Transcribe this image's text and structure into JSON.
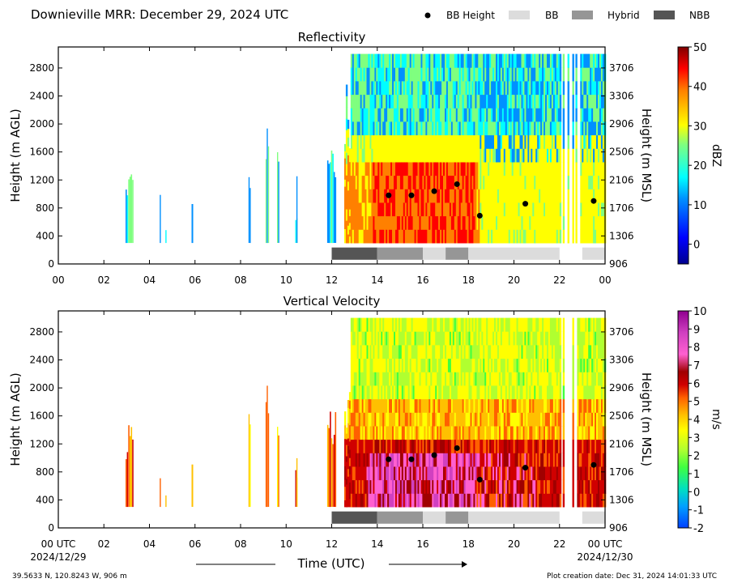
{
  "header": {
    "title": "Downieville MRR:  December 29, 2024 UTC",
    "legend": [
      {
        "label": "BB Height",
        "kind": "dot",
        "color": "#000000"
      },
      {
        "label": "BB",
        "kind": "swatch",
        "color": "#dcdcdc"
      },
      {
        "label": "Hybrid",
        "kind": "swatch",
        "color": "#969696"
      },
      {
        "label": "NBB",
        "kind": "swatch",
        "color": "#555555"
      }
    ]
  },
  "footer": {
    "location": "39.5633 N, 120.8243 W, 906 m",
    "creation": "Plot creation date: Dec 31, 2024 14:01:33 UTC",
    "xlabel": "Time (UTC)",
    "start_date": "2024/12/29",
    "end_date": "2024/12/30"
  },
  "chart_data": [
    {
      "type": "heatmap",
      "title": "Reflectivity",
      "ylabel": "Height (m AGL)",
      "y2label": "Height (m MSL)",
      "xlim": [
        0,
        24
      ],
      "ylim": [
        0,
        3100
      ],
      "x_ticks": [
        "00",
        "02",
        "04",
        "06",
        "08",
        "10",
        "12",
        "14",
        "16",
        "18",
        "20",
        "22",
        "00"
      ],
      "y_ticks": [
        0,
        400,
        800,
        1200,
        1600,
        2000,
        2400,
        2800
      ],
      "y2_ticks": [
        "906",
        "1306",
        "1706",
        "2106",
        "2506",
        "2906",
        "3306",
        "3706"
      ],
      "colorbar": {
        "label": "dBZ",
        "min": -5,
        "max": 50,
        "ticks": [
          0,
          10,
          20,
          30,
          40,
          50
        ]
      },
      "bb_height": [
        {
          "x": 14.5,
          "y": 980
        },
        {
          "x": 15.5,
          "y": 980
        },
        {
          "x": 16.5,
          "y": 1040
        },
        {
          "x": 17.5,
          "y": 1140
        },
        {
          "x": 18.5,
          "y": 690
        },
        {
          "x": 20.5,
          "y": 860
        },
        {
          "x": 23.5,
          "y": 900
        }
      ],
      "bb_class": [
        {
          "start": 12.0,
          "end": 14.0,
          "class": "NBB"
        },
        {
          "start": 14.0,
          "end": 16.0,
          "class": "Hybrid"
        },
        {
          "start": 16.0,
          "end": 17.0,
          "class": "BB"
        },
        {
          "start": 17.0,
          "end": 18.0,
          "class": "Hybrid"
        },
        {
          "start": 18.0,
          "end": 22.0,
          "class": "BB"
        },
        {
          "start": 23.0,
          "end": 24.0,
          "class": "BB"
        }
      ]
    },
    {
      "type": "heatmap",
      "title": "Vertical Velocity",
      "ylabel": "Height (m AGL)",
      "y2label": "Height (m MSL)",
      "xlim": [
        0,
        24
      ],
      "ylim": [
        0,
        3100
      ],
      "x_ticks": [
        "00 UTC",
        "02",
        "04",
        "06",
        "08",
        "10",
        "12",
        "14",
        "16",
        "18",
        "20",
        "22",
        "00 UTC"
      ],
      "y_ticks": [
        0,
        400,
        800,
        1200,
        1600,
        2000,
        2400,
        2800
      ],
      "y2_ticks": [
        "906",
        "1306",
        "1706",
        "2106",
        "2506",
        "2906",
        "3306",
        "3706"
      ],
      "colorbar": {
        "label": "m/s",
        "min": -2,
        "max": 10,
        "ticks": [
          -2,
          -1,
          0,
          1,
          2,
          3,
          4,
          5,
          6,
          7,
          8,
          9,
          10
        ]
      },
      "bb_height": [
        {
          "x": 14.5,
          "y": 980
        },
        {
          "x": 15.5,
          "y": 980
        },
        {
          "x": 16.5,
          "y": 1040
        },
        {
          "x": 17.5,
          "y": 1140
        },
        {
          "x": 18.5,
          "y": 690
        },
        {
          "x": 20.5,
          "y": 860
        },
        {
          "x": 23.5,
          "y": 900
        }
      ],
      "bb_class": [
        {
          "start": 12.0,
          "end": 14.0,
          "class": "NBB"
        },
        {
          "start": 14.0,
          "end": 16.0,
          "class": "Hybrid"
        },
        {
          "start": 16.0,
          "end": 17.0,
          "class": "BB"
        },
        {
          "start": 17.0,
          "end": 18.0,
          "class": "Hybrid"
        },
        {
          "start": 18.0,
          "end": 22.0,
          "class": "BB"
        },
        {
          "start": 23.0,
          "end": 24.0,
          "class": "BB"
        }
      ]
    }
  ]
}
